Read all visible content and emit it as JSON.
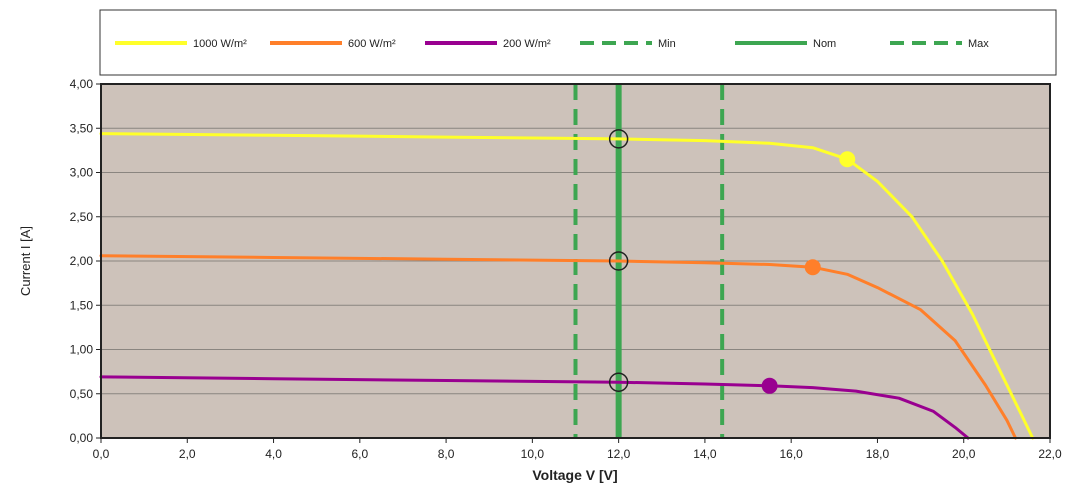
{
  "chart_data": {
    "type": "line",
    "title": "",
    "xlabel": "Voltage V [V]",
    "ylabel": "Current I [A]",
    "xlim": [
      0,
      22
    ],
    "ylim": [
      0,
      4
    ],
    "x_ticks": [
      "0,0",
      "2,0",
      "4,0",
      "6,0",
      "8,0",
      "10,0",
      "12,0",
      "14,0",
      "16,0",
      "18,0",
      "20,0",
      "22,0"
    ],
    "y_ticks": [
      "0,00",
      "0,50",
      "1,00",
      "1,50",
      "2,00",
      "2,50",
      "3,00",
      "3,50",
      "4,00"
    ],
    "grid": "horizontal",
    "legend_position": "top",
    "plot_background": "#cdc2ba",
    "series": [
      {
        "name": "1000 W/m²",
        "color": "#ffff2a",
        "points": [
          [
            0,
            3.44
          ],
          [
            4,
            3.42
          ],
          [
            8,
            3.4
          ],
          [
            12,
            3.38
          ],
          [
            14,
            3.36
          ],
          [
            15.5,
            3.33
          ],
          [
            16.5,
            3.28
          ],
          [
            17.3,
            3.15
          ],
          [
            18,
            2.9
          ],
          [
            18.8,
            2.5
          ],
          [
            19.5,
            2.0
          ],
          [
            20.2,
            1.4
          ],
          [
            20.8,
            0.8
          ],
          [
            21.3,
            0.3
          ],
          [
            21.6,
            0
          ]
        ],
        "mpp": [
          17.3,
          3.15
        ],
        "nominal_point": [
          12,
          3.38
        ]
      },
      {
        "name": "600 W/m²",
        "color": "#ff7f2a",
        "points": [
          [
            0,
            2.06
          ],
          [
            4,
            2.04
          ],
          [
            8,
            2.02
          ],
          [
            12,
            2.0
          ],
          [
            14,
            1.98
          ],
          [
            15.5,
            1.96
          ],
          [
            16.5,
            1.93
          ],
          [
            17.3,
            1.85
          ],
          [
            18,
            1.7
          ],
          [
            19,
            1.45
          ],
          [
            19.8,
            1.1
          ],
          [
            20.5,
            0.6
          ],
          [
            21,
            0.2
          ],
          [
            21.2,
            0
          ]
        ],
        "mpp": [
          16.5,
          1.93
        ],
        "nominal_point": [
          12,
          2.0
        ]
      },
      {
        "name": "200 W/m²",
        "color": "#990090",
        "points": [
          [
            0,
            0.69
          ],
          [
            4,
            0.67
          ],
          [
            8,
            0.65
          ],
          [
            12,
            0.63
          ],
          [
            14,
            0.61
          ],
          [
            15.5,
            0.59
          ],
          [
            16.5,
            0.57
          ],
          [
            17.5,
            0.53
          ],
          [
            18.5,
            0.45
          ],
          [
            19.3,
            0.3
          ],
          [
            19.8,
            0.12
          ],
          [
            20.1,
            0
          ]
        ],
        "mpp": [
          15.5,
          0.59
        ],
        "nominal_point": [
          12,
          0.63
        ]
      }
    ],
    "vertical_lines": [
      {
        "name": "Min",
        "x": 11.0,
        "style": "dashed",
        "color": "#3da651"
      },
      {
        "name": "Nom",
        "x": 12.0,
        "style": "solid",
        "color": "#3da651"
      },
      {
        "name": "Max",
        "x": 14.4,
        "style": "dashed",
        "color": "#3da651"
      }
    ]
  }
}
